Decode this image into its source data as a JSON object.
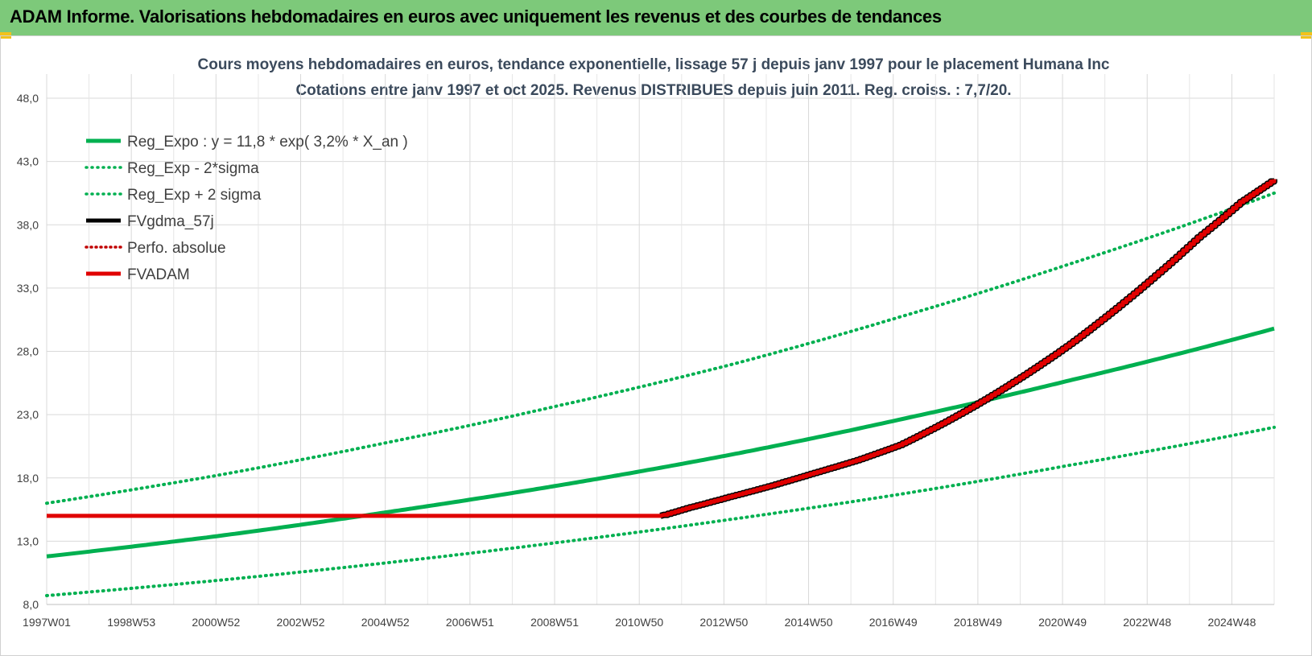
{
  "header": {
    "title": "ADAM Informe. Valorisations hebdomadaires en euros avec uniquement les revenus et des courbes de tendances"
  },
  "colors": {
    "header_bg": "#7dc97a",
    "reg_expo": "#00b050",
    "fvgdma": "#000000",
    "fvadam": "#e00000",
    "perfo": "#c00000"
  },
  "chart_data": {
    "type": "line",
    "title": "Cours moyens hebdomadaires en euros, tendance exponentielle, lissage 57 j depuis janv 1997 pour le placement Humana Inc",
    "subtitle": "Cotations entre janv 1997 et oct 2025. Revenus DISTRIBUES depuis juin 2011. Reg. croiss. : 7,7/20.",
    "xlabel": "",
    "ylabel": "",
    "ylim": [
      8.0,
      48.0
    ],
    "y_ticks": [
      "8,0",
      "13,0",
      "18,0",
      "23,0",
      "28,0",
      "33,0",
      "38,0",
      "43,0",
      "48,0"
    ],
    "x_ticks": [
      "1997W01",
      "1998W53",
      "2000W52",
      "2002W52",
      "2004W52",
      "2006W51",
      "2008W51",
      "2010W50",
      "2012W50",
      "2014W50",
      "2016W49",
      "2018W49",
      "2020W49",
      "2022W48",
      "2024W48"
    ],
    "xlim": [
      1997.0,
      2025.8
    ],
    "grid": true,
    "legend_position": "top-left",
    "series": [
      {
        "name": "Reg_Expo : y = 11,8 * exp( 3,2% *  X_an )",
        "style": "solid",
        "color": "#00b050",
        "x": [
          1997.0,
          2001.0,
          2005.0,
          2009.0,
          2013.0,
          2017.0,
          2021.0,
          2025.8
        ],
        "y": [
          11.8,
          13.4,
          15.3,
          17.4,
          19.8,
          22.6,
          25.7,
          29.8
        ]
      },
      {
        "name": "Reg_Exp - 2*sigma",
        "style": "dotted",
        "color": "#00b050",
        "x": [
          1997.0,
          2001.0,
          2005.0,
          2009.0,
          2013.0,
          2017.0,
          2021.0,
          2025.8
        ],
        "y": [
          8.7,
          9.9,
          11.3,
          12.9,
          14.7,
          16.7,
          19.0,
          22.0
        ]
      },
      {
        "name": "Reg_Exp + 2 sigma",
        "style": "dotted",
        "color": "#00b050",
        "x": [
          1997.0,
          2001.0,
          2005.0,
          2009.0,
          2013.0,
          2017.0,
          2021.0,
          2025.8
        ],
        "y": [
          16.0,
          18.2,
          20.8,
          23.7,
          26.9,
          30.7,
          34.9,
          40.5
        ]
      },
      {
        "name": "FVgdma_57j",
        "style": "solid",
        "color": "#000000",
        "x": [
          2011.4,
          2012.0,
          2013.0,
          2014.0,
          2015.0,
          2016.0,
          2017.0,
          2018.0,
          2019.0,
          2020.0,
          2021.0,
          2022.0,
          2023.0,
          2024.0,
          2025.0,
          2025.8
        ],
        "y": [
          15.0,
          15.6,
          16.5,
          17.4,
          18.4,
          19.4,
          20.6,
          22.3,
          24.2,
          26.3,
          28.6,
          31.2,
          34.0,
          37.0,
          39.8,
          41.6
        ]
      },
      {
        "name": "Perfo. absolue",
        "style": "dotted",
        "color": "#c00000",
        "x": [],
        "y": []
      },
      {
        "name": "FVADAM",
        "style": "solid",
        "color": "#e00000",
        "x": [
          1997.0,
          2011.4,
          2012.0,
          2013.0,
          2014.0,
          2015.0,
          2016.0,
          2017.0,
          2018.0,
          2019.0,
          2020.0,
          2021.0,
          2022.0,
          2023.0,
          2024.0,
          2025.0,
          2025.8
        ],
        "y": [
          15.0,
          15.0,
          15.6,
          16.5,
          17.4,
          18.4,
          19.4,
          20.6,
          22.3,
          24.2,
          26.3,
          28.6,
          31.2,
          34.0,
          37.0,
          39.8,
          41.6
        ]
      }
    ]
  }
}
